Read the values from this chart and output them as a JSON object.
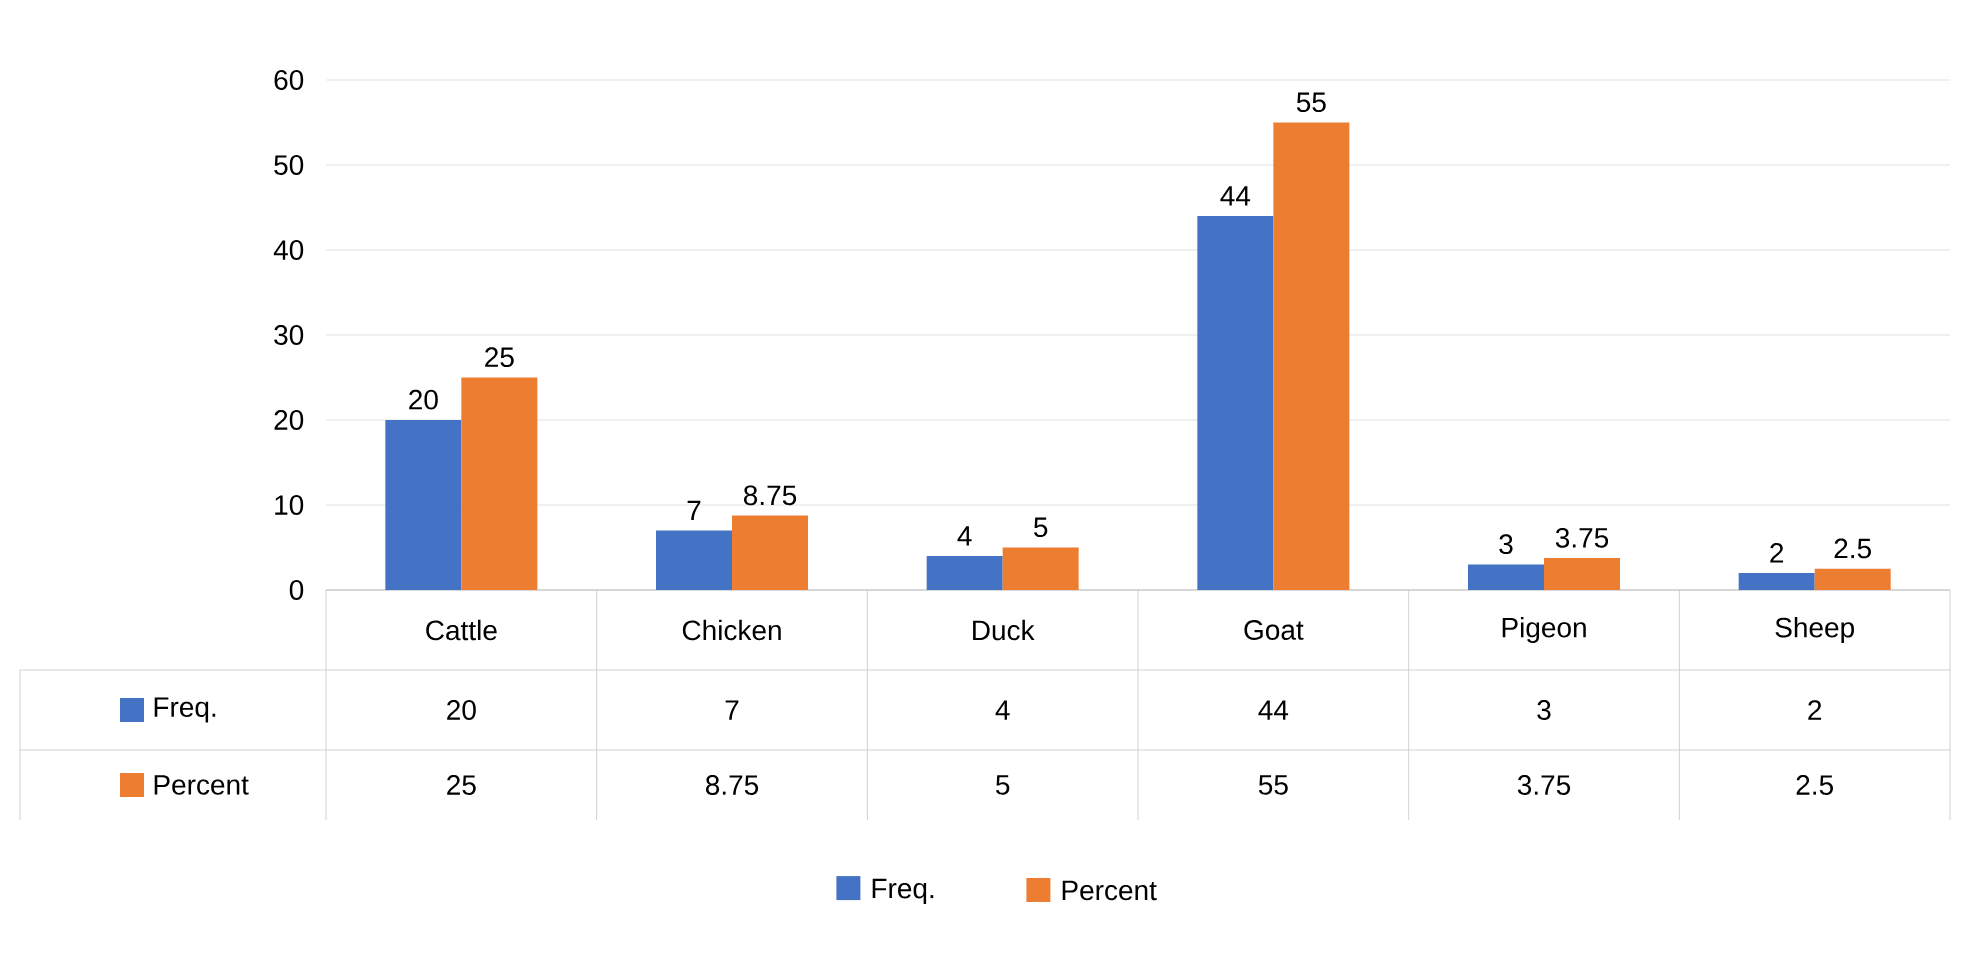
{
  "chart_data": {
    "type": "bar",
    "categories": [
      "Cattle",
      "Chicken",
      "Duck",
      "Goat",
      "Pigeon",
      "Sheep"
    ],
    "series": [
      {
        "name": "Freq.",
        "color": "#4472c4",
        "values": [
          20,
          7,
          4,
          44,
          3,
          2
        ],
        "value_labels": [
          "20",
          "7",
          "4",
          "44",
          "3",
          "2"
        ]
      },
      {
        "name": "Percent",
        "color": "#ed7d31",
        "values": [
          25,
          8.75,
          5,
          55,
          3.75,
          2.5
        ],
        "value_labels": [
          "25",
          "8.75",
          "5",
          "55",
          "3.75",
          "2.5"
        ]
      }
    ],
    "ylim": [
      0,
      60
    ],
    "yticks": [
      0,
      10,
      20,
      30,
      40,
      50,
      60
    ],
    "grid": "y",
    "legend": "bottom",
    "data_labels": true
  }
}
